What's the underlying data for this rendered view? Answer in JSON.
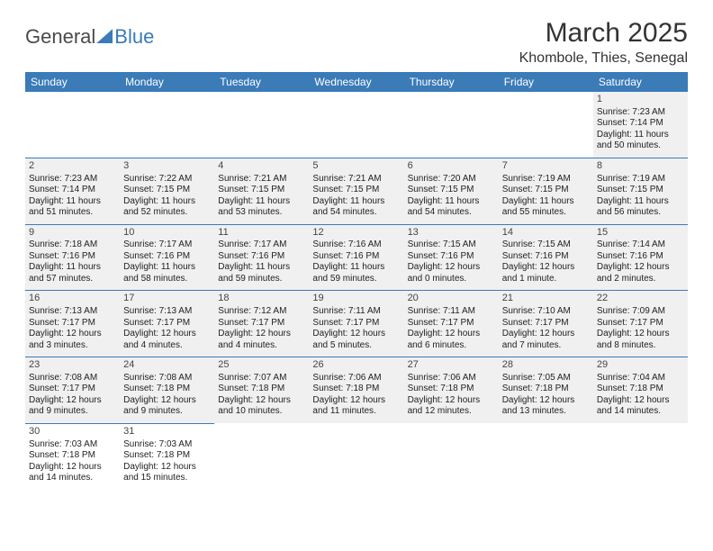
{
  "logo": {
    "text1": "General",
    "text2": "Blue"
  },
  "title": "March 2025",
  "location": "Khombole, Thies, Senegal",
  "header_bg": "#3a7bb8",
  "header_fg": "#ffffff",
  "cell_bg": "#f0f0f0",
  "border_color": "#3a7bb8",
  "columns": [
    "Sunday",
    "Monday",
    "Tuesday",
    "Wednesday",
    "Thursday",
    "Friday",
    "Saturday"
  ],
  "weeks": [
    [
      null,
      null,
      null,
      null,
      null,
      null,
      {
        "d": "1",
        "sr": "Sunrise: 7:23 AM",
        "ss": "Sunset: 7:14 PM",
        "dl1": "Daylight: 11 hours",
        "dl2": "and 50 minutes."
      }
    ],
    [
      {
        "d": "2",
        "sr": "Sunrise: 7:23 AM",
        "ss": "Sunset: 7:14 PM",
        "dl1": "Daylight: 11 hours",
        "dl2": "and 51 minutes."
      },
      {
        "d": "3",
        "sr": "Sunrise: 7:22 AM",
        "ss": "Sunset: 7:15 PM",
        "dl1": "Daylight: 11 hours",
        "dl2": "and 52 minutes."
      },
      {
        "d": "4",
        "sr": "Sunrise: 7:21 AM",
        "ss": "Sunset: 7:15 PM",
        "dl1": "Daylight: 11 hours",
        "dl2": "and 53 minutes."
      },
      {
        "d": "5",
        "sr": "Sunrise: 7:21 AM",
        "ss": "Sunset: 7:15 PM",
        "dl1": "Daylight: 11 hours",
        "dl2": "and 54 minutes."
      },
      {
        "d": "6",
        "sr": "Sunrise: 7:20 AM",
        "ss": "Sunset: 7:15 PM",
        "dl1": "Daylight: 11 hours",
        "dl2": "and 54 minutes."
      },
      {
        "d": "7",
        "sr": "Sunrise: 7:19 AM",
        "ss": "Sunset: 7:15 PM",
        "dl1": "Daylight: 11 hours",
        "dl2": "and 55 minutes."
      },
      {
        "d": "8",
        "sr": "Sunrise: 7:19 AM",
        "ss": "Sunset: 7:15 PM",
        "dl1": "Daylight: 11 hours",
        "dl2": "and 56 minutes."
      }
    ],
    [
      {
        "d": "9",
        "sr": "Sunrise: 7:18 AM",
        "ss": "Sunset: 7:16 PM",
        "dl1": "Daylight: 11 hours",
        "dl2": "and 57 minutes."
      },
      {
        "d": "10",
        "sr": "Sunrise: 7:17 AM",
        "ss": "Sunset: 7:16 PM",
        "dl1": "Daylight: 11 hours",
        "dl2": "and 58 minutes."
      },
      {
        "d": "11",
        "sr": "Sunrise: 7:17 AM",
        "ss": "Sunset: 7:16 PM",
        "dl1": "Daylight: 11 hours",
        "dl2": "and 59 minutes."
      },
      {
        "d": "12",
        "sr": "Sunrise: 7:16 AM",
        "ss": "Sunset: 7:16 PM",
        "dl1": "Daylight: 11 hours",
        "dl2": "and 59 minutes."
      },
      {
        "d": "13",
        "sr": "Sunrise: 7:15 AM",
        "ss": "Sunset: 7:16 PM",
        "dl1": "Daylight: 12 hours",
        "dl2": "and 0 minutes."
      },
      {
        "d": "14",
        "sr": "Sunrise: 7:15 AM",
        "ss": "Sunset: 7:16 PM",
        "dl1": "Daylight: 12 hours",
        "dl2": "and 1 minute."
      },
      {
        "d": "15",
        "sr": "Sunrise: 7:14 AM",
        "ss": "Sunset: 7:16 PM",
        "dl1": "Daylight: 12 hours",
        "dl2": "and 2 minutes."
      }
    ],
    [
      {
        "d": "16",
        "sr": "Sunrise: 7:13 AM",
        "ss": "Sunset: 7:17 PM",
        "dl1": "Daylight: 12 hours",
        "dl2": "and 3 minutes."
      },
      {
        "d": "17",
        "sr": "Sunrise: 7:13 AM",
        "ss": "Sunset: 7:17 PM",
        "dl1": "Daylight: 12 hours",
        "dl2": "and 4 minutes."
      },
      {
        "d": "18",
        "sr": "Sunrise: 7:12 AM",
        "ss": "Sunset: 7:17 PM",
        "dl1": "Daylight: 12 hours",
        "dl2": "and 4 minutes."
      },
      {
        "d": "19",
        "sr": "Sunrise: 7:11 AM",
        "ss": "Sunset: 7:17 PM",
        "dl1": "Daylight: 12 hours",
        "dl2": "and 5 minutes."
      },
      {
        "d": "20",
        "sr": "Sunrise: 7:11 AM",
        "ss": "Sunset: 7:17 PM",
        "dl1": "Daylight: 12 hours",
        "dl2": "and 6 minutes."
      },
      {
        "d": "21",
        "sr": "Sunrise: 7:10 AM",
        "ss": "Sunset: 7:17 PM",
        "dl1": "Daylight: 12 hours",
        "dl2": "and 7 minutes."
      },
      {
        "d": "22",
        "sr": "Sunrise: 7:09 AM",
        "ss": "Sunset: 7:17 PM",
        "dl1": "Daylight: 12 hours",
        "dl2": "and 8 minutes."
      }
    ],
    [
      {
        "d": "23",
        "sr": "Sunrise: 7:08 AM",
        "ss": "Sunset: 7:17 PM",
        "dl1": "Daylight: 12 hours",
        "dl2": "and 9 minutes."
      },
      {
        "d": "24",
        "sr": "Sunrise: 7:08 AM",
        "ss": "Sunset: 7:18 PM",
        "dl1": "Daylight: 12 hours",
        "dl2": "and 9 minutes."
      },
      {
        "d": "25",
        "sr": "Sunrise: 7:07 AM",
        "ss": "Sunset: 7:18 PM",
        "dl1": "Daylight: 12 hours",
        "dl2": "and 10 minutes."
      },
      {
        "d": "26",
        "sr": "Sunrise: 7:06 AM",
        "ss": "Sunset: 7:18 PM",
        "dl1": "Daylight: 12 hours",
        "dl2": "and 11 minutes."
      },
      {
        "d": "27",
        "sr": "Sunrise: 7:06 AM",
        "ss": "Sunset: 7:18 PM",
        "dl1": "Daylight: 12 hours",
        "dl2": "and 12 minutes."
      },
      {
        "d": "28",
        "sr": "Sunrise: 7:05 AM",
        "ss": "Sunset: 7:18 PM",
        "dl1": "Daylight: 12 hours",
        "dl2": "and 13 minutes."
      },
      {
        "d": "29",
        "sr": "Sunrise: 7:04 AM",
        "ss": "Sunset: 7:18 PM",
        "dl1": "Daylight: 12 hours",
        "dl2": "and 14 minutes."
      }
    ],
    [
      {
        "d": "30",
        "sr": "Sunrise: 7:03 AM",
        "ss": "Sunset: 7:18 PM",
        "dl1": "Daylight: 12 hours",
        "dl2": "and 14 minutes."
      },
      {
        "d": "31",
        "sr": "Sunrise: 7:03 AM",
        "ss": "Sunset: 7:18 PM",
        "dl1": "Daylight: 12 hours",
        "dl2": "and 15 minutes."
      },
      null,
      null,
      null,
      null,
      null
    ]
  ]
}
